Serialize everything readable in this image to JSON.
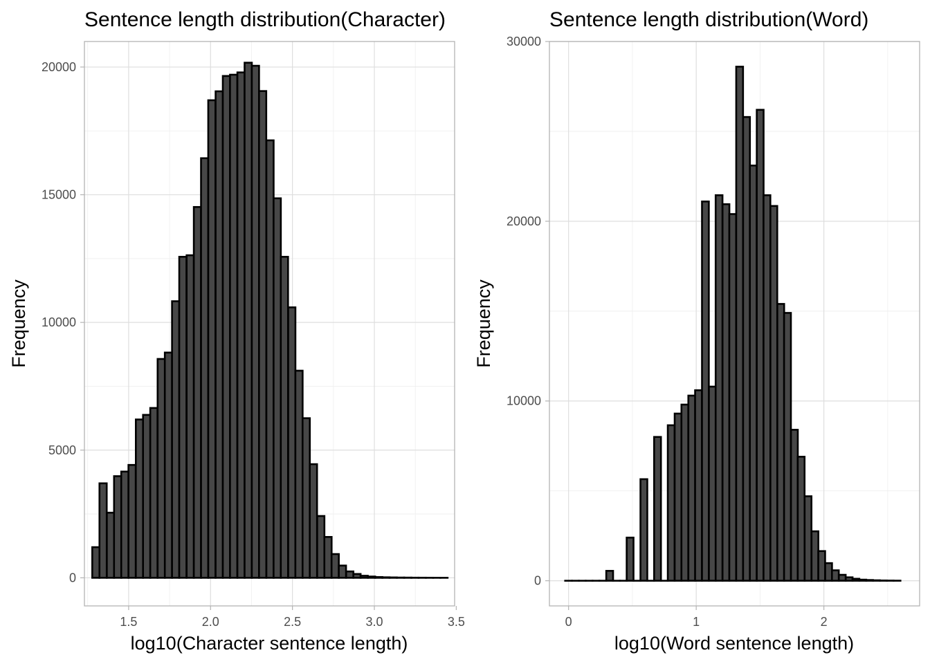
{
  "chart_data": [
    {
      "type": "bar",
      "title": "Sentence length distribution(Character)",
      "xlabel": "log10(Character sentence length)",
      "ylabel": "Frequency",
      "xlim": [
        1.23,
        3.49
      ],
      "ylim": [
        -1100,
        21000
      ],
      "x_ticks": [
        1.5,
        2.0,
        2.5,
        3.0,
        3.5
      ],
      "x_tick_labels": [
        "1.5",
        "2.0",
        "2.5",
        "3.0",
        "3.5"
      ],
      "y_ticks": [
        0,
        5000,
        10000,
        15000,
        20000
      ],
      "y_tick_labels": [
        "0",
        "5000",
        "10000",
        "15000",
        "20000"
      ],
      "grid": true,
      "bin_width": 0.0443,
      "x": [
        1.3,
        1.344,
        1.389,
        1.433,
        1.477,
        1.521,
        1.566,
        1.61,
        1.654,
        1.699,
        1.743,
        1.787,
        1.831,
        1.876,
        1.92,
        1.964,
        2.008,
        2.053,
        2.097,
        2.141,
        2.186,
        2.23,
        2.274,
        2.318,
        2.363,
        2.407,
        2.451,
        2.496,
        2.54,
        2.584,
        2.628,
        2.673,
        2.717,
        2.761,
        2.805,
        2.85,
        2.894,
        2.938,
        2.983,
        3.027,
        3.071,
        3.115,
        3.16,
        3.204,
        3.248,
        3.292,
        3.337,
        3.381,
        3.425
      ],
      "values": [
        1200,
        3700,
        2550,
        3980,
        4160,
        4420,
        6200,
        6380,
        6650,
        8570,
        8820,
        10830,
        12570,
        12630,
        14520,
        16430,
        18700,
        19050,
        19650,
        19700,
        19790,
        20170,
        20050,
        19060,
        17130,
        14860,
        12570,
        10590,
        8110,
        6250,
        4450,
        2420,
        1600,
        930,
        480,
        250,
        150,
        80,
        50,
        30,
        20,
        15,
        10,
        8,
        5,
        4,
        3,
        2,
        1
      ]
    },
    {
      "type": "bar",
      "title": "Sentence length distribution(Word)",
      "xlabel": "log10(Word sentence length)",
      "ylabel": "Frequency",
      "xlim": [
        -0.15,
        2.75
      ],
      "ylim": [
        -1400,
        30000
      ],
      "x_ticks": [
        0,
        1,
        2
      ],
      "x_tick_labels": [
        "0",
        "1",
        "2"
      ],
      "y_ticks": [
        0,
        10000,
        20000,
        30000
      ],
      "y_tick_labels": [
        "0",
        "10000",
        "20000",
        "30000"
      ],
      "grid": true,
      "bin_width": 0.0536,
      "x": [
        0.0,
        0.054,
        0.107,
        0.161,
        0.214,
        0.268,
        0.322,
        0.375,
        0.429,
        0.482,
        0.536,
        0.59,
        0.643,
        0.697,
        0.75,
        0.804,
        0.858,
        0.911,
        0.965,
        1.018,
        1.072,
        1.126,
        1.179,
        1.233,
        1.286,
        1.34,
        1.394,
        1.447,
        1.501,
        1.554,
        1.608,
        1.662,
        1.715,
        1.769,
        1.822,
        1.876,
        1.93,
        1.983,
        2.037,
        2.09,
        2.144,
        2.198,
        2.251,
        2.305,
        2.358,
        2.412,
        2.466,
        2.519,
        2.573
      ],
      "values": [
        0,
        0,
        0,
        0,
        0,
        0,
        550,
        0,
        0,
        2400,
        0,
        5650,
        0,
        8000,
        0,
        8650,
        9300,
        9800,
        10300,
        10600,
        21100,
        10800,
        21450,
        20950,
        20400,
        28600,
        25800,
        23100,
        26200,
        21450,
        20850,
        15400,
        14900,
        8400,
        6900,
        4700,
        2750,
        1650,
        980,
        580,
        330,
        190,
        110,
        60,
        40,
        25,
        15,
        10,
        5
      ]
    }
  ]
}
